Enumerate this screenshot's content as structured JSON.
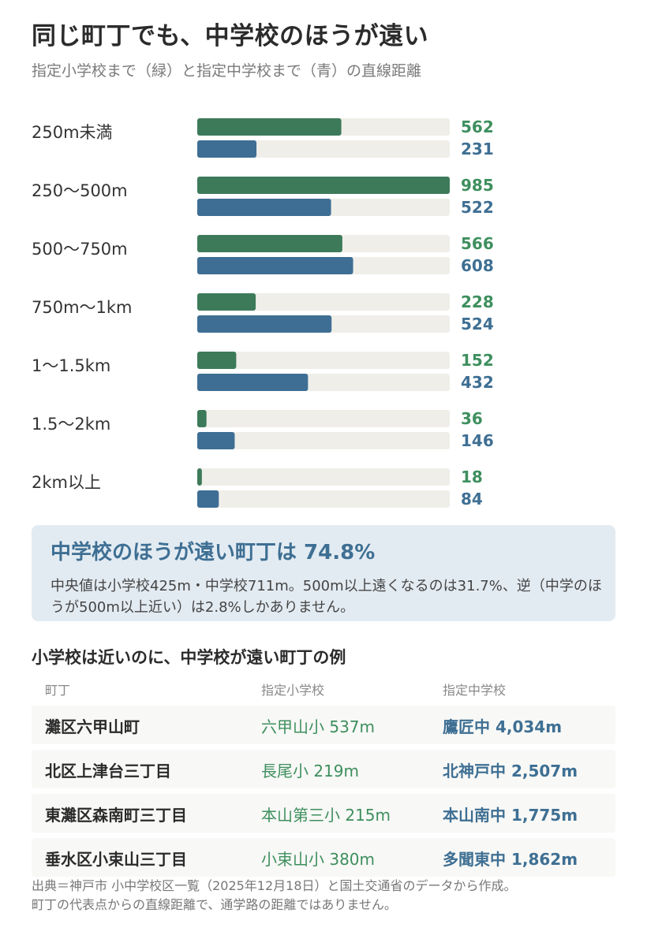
{
  "header": {
    "title": "同じ町丁でも、中学校のほうが遠い",
    "subtitle": "指定小学校まで（緑）と指定中学校まで（青）の直線距離"
  },
  "colors": {
    "elementary": "#3d7a5a",
    "junior": "#3e6e94",
    "track": "#efeee9",
    "elementary_text": "#3e8f5e",
    "junior_text": "#3e6f93"
  },
  "chart_data": {
    "type": "bar",
    "orientation": "horizontal",
    "categories": [
      "250m未満",
      "250〜500m",
      "500〜750m",
      "750m〜1km",
      "1〜1.5km",
      "1.5〜2km",
      "2km以上"
    ],
    "series": [
      {
        "values": [
          562,
          985,
          566,
          228,
          152,
          36,
          18
        ]
      },
      {
        "values": [
          231,
          522,
          608,
          524,
          432,
          146,
          84
        ]
      }
    ],
    "xlim": [
      0,
      985
    ],
    "grid": false,
    "legend": "none"
  },
  "callout": {
    "headline": "中学校のほうが遠い町丁は 74.8%",
    "body": "中央値は小学校425m・中学校711m。500m以上遠くなるのは31.7%、逆（中学のほうが500m以上近い）は2.8%しかありません。"
  },
  "examples": {
    "title": "小学校は近いのに、中学校が遠い町丁の例",
    "headers": [
      "町丁",
      "指定小学校",
      "指定中学校"
    ],
    "rows": [
      [
        "灘区六甲山町",
        "六甲山小 537m",
        "鷹匠中 4,034m"
      ],
      [
        "北区上津台三丁目",
        "長尾小 219m",
        "北神戸中 2,507m"
      ],
      [
        "東灘区森南町三丁目",
        "本山第三小 215m",
        "本山南中 1,775m"
      ],
      [
        "垂水区小束山三丁目",
        "小束山小 380m",
        "多聞東中 1,862m"
      ]
    ]
  },
  "source": {
    "line1": "出典＝神戸市 小中学校区一覧（2025年12月18日）と国土交通省のデータから作成。",
    "line2": "町丁の代表点からの直線距離で、通学路の距離ではありません。"
  }
}
